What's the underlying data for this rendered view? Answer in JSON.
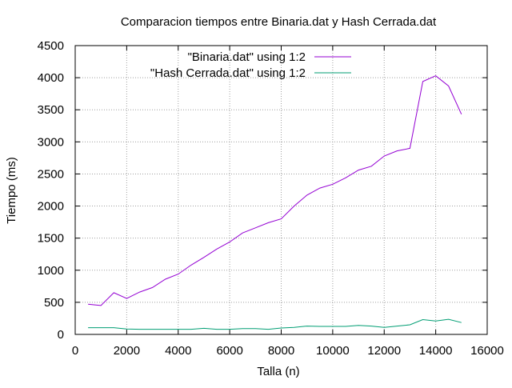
{
  "chart_data": {
    "type": "line",
    "title": "Comparacion tiempos entre Binaria.dat y Hash Cerrada.dat",
    "xlabel": "Talla (n)",
    "ylabel": "Tiempo (ms)",
    "xlim": [
      0,
      16000
    ],
    "ylim": [
      0,
      4500
    ],
    "x_ticks": [
      0,
      2000,
      4000,
      6000,
      8000,
      10000,
      12000,
      14000,
      16000
    ],
    "y_ticks": [
      0,
      500,
      1000,
      1500,
      2000,
      2500,
      3000,
      3500,
      4000,
      4500
    ],
    "grid": true,
    "legend_position": "top",
    "series": [
      {
        "name": "\"Binaria.dat\" using 1:2",
        "color": "#9400d3",
        "points": [
          [
            500,
            470
          ],
          [
            1000,
            450
          ],
          [
            1500,
            650
          ],
          [
            2000,
            560
          ],
          [
            2500,
            660
          ],
          [
            3000,
            730
          ],
          [
            3500,
            860
          ],
          [
            4000,
            940
          ],
          [
            4500,
            1080
          ],
          [
            5000,
            1200
          ],
          [
            5500,
            1330
          ],
          [
            6000,
            1440
          ],
          [
            6500,
            1580
          ],
          [
            7000,
            1660
          ],
          [
            7500,
            1740
          ],
          [
            8000,
            1800
          ],
          [
            8500,
            2000
          ],
          [
            9000,
            2170
          ],
          [
            9500,
            2280
          ],
          [
            10000,
            2340
          ],
          [
            10500,
            2440
          ],
          [
            11000,
            2560
          ],
          [
            11500,
            2620
          ],
          [
            12000,
            2780
          ],
          [
            12500,
            2860
          ],
          [
            13000,
            2900
          ],
          [
            13500,
            3940
          ],
          [
            14000,
            4030
          ],
          [
            14500,
            3870
          ],
          [
            15000,
            3430
          ]
        ]
      },
      {
        "name": "\"Hash Cerrada.dat\" using 1:2",
        "color": "#009e73",
        "points": [
          [
            500,
            105
          ],
          [
            1000,
            105
          ],
          [
            1500,
            105
          ],
          [
            2000,
            85
          ],
          [
            2500,
            80
          ],
          [
            3000,
            80
          ],
          [
            3500,
            80
          ],
          [
            4000,
            80
          ],
          [
            4500,
            80
          ],
          [
            5000,
            95
          ],
          [
            5500,
            80
          ],
          [
            6000,
            80
          ],
          [
            6500,
            90
          ],
          [
            7000,
            90
          ],
          [
            7500,
            80
          ],
          [
            8000,
            100
          ],
          [
            8500,
            110
          ],
          [
            9000,
            130
          ],
          [
            9500,
            125
          ],
          [
            10000,
            125
          ],
          [
            10500,
            125
          ],
          [
            11000,
            140
          ],
          [
            11500,
            130
          ],
          [
            12000,
            110
          ],
          [
            12500,
            130
          ],
          [
            13000,
            150
          ],
          [
            13500,
            230
          ],
          [
            14000,
            210
          ],
          [
            14500,
            235
          ],
          [
            15000,
            185
          ]
        ]
      }
    ]
  }
}
